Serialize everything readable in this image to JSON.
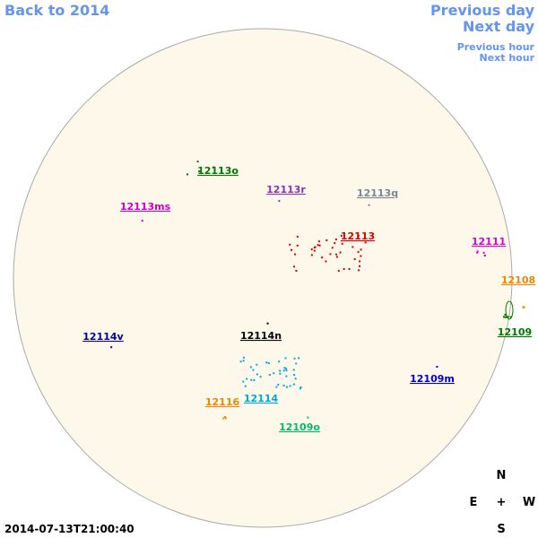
{
  "nav": {
    "back": "Back to 2014",
    "previous_day": "Previous day",
    "next_day": "Next day",
    "previous_hour": "Previous hour",
    "next_hour": "Next hour"
  },
  "regions": [
    {
      "label": "12113o",
      "color": "#007700"
    },
    {
      "label": "12113r",
      "color": "#8833bb"
    },
    {
      "label": "12113q",
      "color": "#778899"
    },
    {
      "label": "12113ms",
      "color": "#cc00cc"
    },
    {
      "label": "12113",
      "color": "#dd0000"
    },
    {
      "label": "12111",
      "color": "#dd00dd"
    },
    {
      "label": "12108",
      "color": "#ee8800"
    },
    {
      "label": "12109",
      "color": "#007700"
    },
    {
      "label": "12114v",
      "color": "#0000aa"
    },
    {
      "label": "12114n",
      "color": "#000000"
    },
    {
      "label": "12109m",
      "color": "#0000cc"
    },
    {
      "label": "12116",
      "color": "#ee8800"
    },
    {
      "label": "12114",
      "color": "#00aadd"
    },
    {
      "label": "12109o",
      "color": "#00bb66"
    }
  ],
  "compass": {
    "north": "N",
    "east": "E",
    "center": "+",
    "west": "W",
    "south": "S"
  },
  "timestamp": "2014-07-13T21:00:40"
}
